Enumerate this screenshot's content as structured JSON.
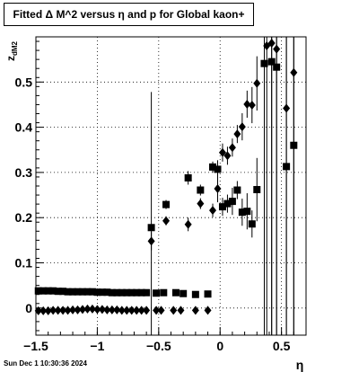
{
  "chart_data": {
    "type": "scatter",
    "title": "Fitted Δ M^2 versus η and p for Global kaon+",
    "xlabel": "η",
    "ylabel": "z_{dM2}",
    "xlim": [
      -1.5,
      0.7
    ],
    "ylim": [
      -0.06,
      0.6
    ],
    "x_ticks": [
      -1.5,
      -1,
      -0.5,
      0,
      0.5
    ],
    "x_tick_labels": [
      "−1.5",
      "−1",
      "−0.5",
      "0",
      "0.5"
    ],
    "y_ticks": [
      0,
      0.1,
      0.2,
      0.3,
      0.4,
      0.5
    ],
    "y_tick_labels": [
      "0",
      "0.1",
      "0.2",
      "0.3",
      "0.4",
      "0.5"
    ],
    "grid": true,
    "series": [
      {
        "marker": "square",
        "points": [
          [
            -1.48,
            0.038
          ],
          [
            -1.44,
            0.038
          ],
          [
            -1.4,
            0.038
          ],
          [
            -1.36,
            0.038
          ],
          [
            -1.32,
            0.037
          ],
          [
            -1.28,
            0.037
          ],
          [
            -1.24,
            0.036
          ],
          [
            -1.2,
            0.036
          ],
          [
            -1.16,
            0.036
          ],
          [
            -1.12,
            0.036
          ],
          [
            -1.08,
            0.036
          ],
          [
            -1.04,
            0.036
          ],
          [
            -1.0,
            0.035
          ],
          [
            -0.96,
            0.035
          ],
          [
            -0.92,
            0.035
          ],
          [
            -0.88,
            0.034
          ],
          [
            -0.84,
            0.034
          ],
          [
            -0.8,
            0.034
          ],
          [
            -0.76,
            0.034
          ],
          [
            -0.72,
            0.034
          ],
          [
            -0.68,
            0.034
          ],
          [
            -0.64,
            0.034
          ],
          [
            -0.6,
            0.034
          ],
          [
            -0.56,
            0.178
          ],
          [
            -0.52,
            0.033
          ],
          [
            -0.46,
            0.034
          ],
          [
            -0.44,
            0.229
          ],
          [
            -0.36,
            0.034
          ],
          [
            -0.3,
            0.032
          ],
          [
            -0.26,
            0.288
          ],
          [
            -0.2,
            0.03
          ],
          [
            -0.16,
            0.261
          ],
          [
            -0.1,
            0.031
          ],
          [
            -0.06,
            0.312
          ],
          [
            -0.02,
            0.307
          ],
          [
            0.02,
            0.224
          ],
          [
            0.06,
            0.231
          ],
          [
            0.1,
            0.236
          ],
          [
            0.14,
            0.261
          ],
          [
            0.18,
            0.212
          ],
          [
            0.22,
            0.214
          ],
          [
            0.26,
            0.186
          ],
          [
            0.3,
            0.262
          ],
          [
            0.36,
            0.541
          ],
          [
            0.42,
            0.545
          ],
          [
            0.46,
            0.533
          ],
          [
            0.54,
            0.313
          ],
          [
            0.6,
            0.36
          ]
        ],
        "errors": [
          0.003,
          0.003,
          0.003,
          0.003,
          0.003,
          0.003,
          0.003,
          0.003,
          0.003,
          0.003,
          0.003,
          0.003,
          0.003,
          0.003,
          0.003,
          0.003,
          0.003,
          0.003,
          0.003,
          0.003,
          0.003,
          0.003,
          0.003,
          0.3,
          0.003,
          0.003,
          0.01,
          0.003,
          0.003,
          0.015,
          0.003,
          0.012,
          0.003,
          0.012,
          0.02,
          0.02,
          0.02,
          0.03,
          0.02,
          0.03,
          0.04,
          0.03,
          0.07,
          0.7,
          0.7,
          0.7,
          0.7,
          0.7
        ]
      },
      {
        "marker": "diamond",
        "points": [
          [
            -1.48,
            -0.006
          ],
          [
            -1.44,
            -0.006
          ],
          [
            -1.4,
            -0.006
          ],
          [
            -1.36,
            -0.005
          ],
          [
            -1.32,
            -0.005
          ],
          [
            -1.28,
            -0.005
          ],
          [
            -1.24,
            -0.005
          ],
          [
            -1.2,
            -0.004
          ],
          [
            -1.16,
            -0.004
          ],
          [
            -1.12,
            -0.003
          ],
          [
            -1.08,
            -0.002
          ],
          [
            -1.04,
            -0.002
          ],
          [
            -1.0,
            -0.003
          ],
          [
            -0.96,
            -0.003
          ],
          [
            -0.92,
            -0.004
          ],
          [
            -0.88,
            -0.004
          ],
          [
            -0.84,
            -0.004
          ],
          [
            -0.8,
            -0.005
          ],
          [
            -0.76,
            -0.005
          ],
          [
            -0.72,
            -0.005
          ],
          [
            -0.68,
            -0.005
          ],
          [
            -0.64,
            -0.005
          ],
          [
            -0.6,
            -0.005
          ],
          [
            -0.56,
            0.148
          ],
          [
            -0.52,
            -0.005
          ],
          [
            -0.48,
            -0.005
          ],
          [
            -0.44,
            0.193
          ],
          [
            -0.38,
            -0.005
          ],
          [
            -0.32,
            -0.005
          ],
          [
            -0.26,
            0.185
          ],
          [
            -0.2,
            -0.005
          ],
          [
            -0.16,
            0.231
          ],
          [
            -0.1,
            -0.005
          ],
          [
            -0.06,
            0.216
          ],
          [
            -0.02,
            0.264
          ],
          [
            0.02,
            0.344
          ],
          [
            0.06,
            0.337
          ],
          [
            0.1,
            0.355
          ],
          [
            0.14,
            0.385
          ],
          [
            0.18,
            0.401
          ],
          [
            0.22,
            0.451
          ],
          [
            0.26,
            0.449
          ],
          [
            0.3,
            0.497
          ],
          [
            0.38,
            0.58
          ],
          [
            0.42,
            0.586
          ],
          [
            0.46,
            0.573
          ],
          [
            0.54,
            0.442
          ],
          [
            0.6,
            0.521
          ]
        ],
        "errors": [
          0.003,
          0.003,
          0.003,
          0.003,
          0.003,
          0.003,
          0.003,
          0.003,
          0.003,
          0.003,
          0.003,
          0.003,
          0.003,
          0.003,
          0.003,
          0.003,
          0.003,
          0.003,
          0.003,
          0.003,
          0.003,
          0.003,
          0.003,
          0.02,
          0.003,
          0.003,
          0.01,
          0.003,
          0.003,
          0.015,
          0.003,
          0.012,
          0.003,
          0.015,
          0.03,
          0.02,
          0.02,
          0.02,
          0.02,
          0.03,
          0.03,
          0.04,
          0.06,
          0.7,
          0.7,
          0.7,
          0.7,
          0.7
        ]
      }
    ]
  },
  "timestamp": "Sun Dec  1 10:30:36 2024"
}
